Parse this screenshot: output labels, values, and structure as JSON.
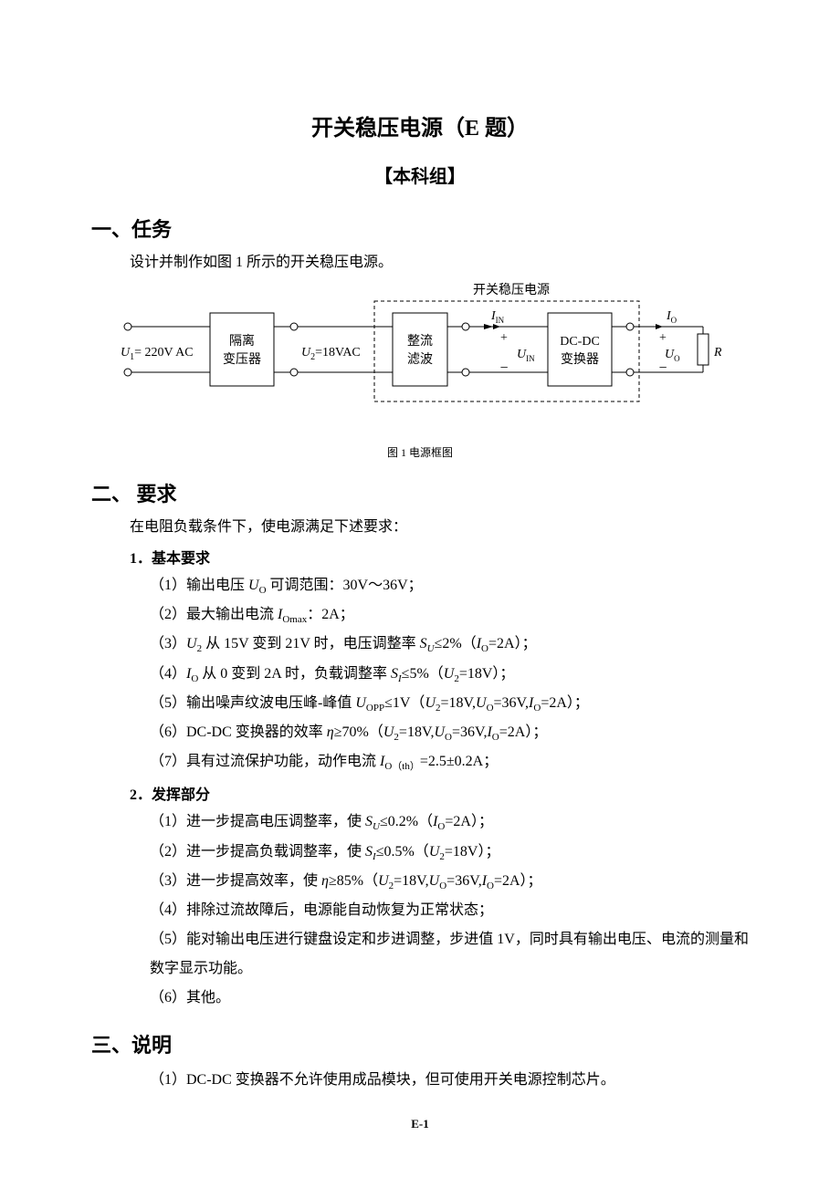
{
  "title_main": "开关稳压电源（E 题）",
  "title_sub": "【本科组】",
  "section1": {
    "heading": "一、任务",
    "text": "设计并制作如图 1 所示的开关稳压电源。"
  },
  "diagram": {
    "caption": "图 1 电源框图",
    "label_top": "开关稳压电源",
    "block_labels": {
      "transformer_l1": "隔离",
      "transformer_l2": "变压器",
      "rectifier_l1": "整流",
      "rectifier_l2": "滤波",
      "dcdc_l1": "DC-DC",
      "dcdc_l2": "变换器"
    },
    "text_labels": {
      "u1": "U",
      "u1_sub": "1",
      "u1_val": "= 220V AC",
      "u2": "U",
      "u2_sub": "2",
      "u2_val": "=18VAC",
      "iin": "I",
      "iin_sub": "IN",
      "uin": "U",
      "uin_sub": "IN",
      "io": "I",
      "io_sub": "O",
      "uo": "U",
      "uo_sub": "O",
      "rl": "R",
      "rl_sub": "L",
      "plus": "+",
      "minus": "−"
    },
    "colors": {
      "stroke": "#000000",
      "bg": "#ffffff",
      "dash": "4,3"
    },
    "line_width": 1,
    "font_label": 14,
    "font_sym": 14,
    "font_sub": 10
  },
  "section2": {
    "heading": "二、 要求",
    "intro": "在电阻负载条件下，使电源满足下述要求：",
    "basic_heading": "1．基本要求",
    "advanced_heading": "2．发挥部分",
    "basic": [
      "（1）输出电压 <span class=\"ital\">U</span><span class=\"sub\">O</span> 可调范围：30V～36V；",
      "（2）最大输出电流 <span class=\"ital\">I</span><span class=\"sub\">Omax</span>：2A；",
      "（3）<span class=\"ital\">U</span><span class=\"sub\">2</span> 从 15V 变到 21V 时，电压调整率 <span class=\"ital\">S<span class=\"sub\">U</span></span>≤2%（<span class=\"ital\">I</span><span class=\"sub\">O</span>=2A）；",
      "（4）<span class=\"ital\">I</span><span class=\"sub\">O</span> 从 0 变到 2A 时，负载调整率 <span class=\"ital\">S<span class=\"sub\">I</span></span>≤5%（<span class=\"ital\">U</span><span class=\"sub\">2</span>=18V）；",
      "（5）输出噪声纹波电压峰-峰值 <span class=\"ital\">U</span><span class=\"sub\">OPP</span>≤1V（<span class=\"ital\">U</span><span class=\"sub\">2</span>=18V,<span class=\"ital\">U</span><span class=\"sub\">O</span>=36V,<span class=\"ital\">I</span><span class=\"sub\">O</span>=2A）；",
      "（6）DC-DC 变换器的效率 <span class=\"ital\">η</span>≥70%（<span class=\"ital\">U</span><span class=\"sub\">2</span>=18V,<span class=\"ital\">U</span><span class=\"sub\">O</span>=36V,<span class=\"ital\">I</span><span class=\"sub\">O</span>=2A）；",
      "（7）具有过流保护功能，动作电流 <span class=\"ital\">I</span><span class=\"sub\">O（th）</span>=2.5±0.2A；"
    ],
    "advanced": [
      "（1）进一步提高电压调整率，使 <span class=\"ital\">S<span class=\"sub\">U</span></span>≤0.2%（<span class=\"ital\">I</span><span class=\"sub\">O</span>=2A）；",
      "（2）进一步提高负载调整率，使 <span class=\"ital\">S<span class=\"sub\">I</span></span>≤0.5%（<span class=\"ital\">U</span><span class=\"sub\">2</span>=18V）；",
      "（3）进一步提高效率，使 <span class=\"ital\">η</span>≥85%（<span class=\"ital\">U</span><span class=\"sub\">2</span>=18V,<span class=\"ital\">U</span><span class=\"sub\">O</span>=36V,<span class=\"ital\">I</span><span class=\"sub\">O</span>=2A）；",
      "（4）排除过流故障后，电源能自动恢复为正常状态；",
      "（5）能对输出电压进行键盘设定和步进调整，步进值 1V，同时具有输出电压、电流的测量和数字显示功能。",
      "（6）其他。"
    ]
  },
  "section3": {
    "heading": "三、说明",
    "items": [
      "（1）DC-DC 变换器不允许使用成品模块，但可使用开关电源控制芯片。"
    ]
  },
  "footer": "E-1"
}
